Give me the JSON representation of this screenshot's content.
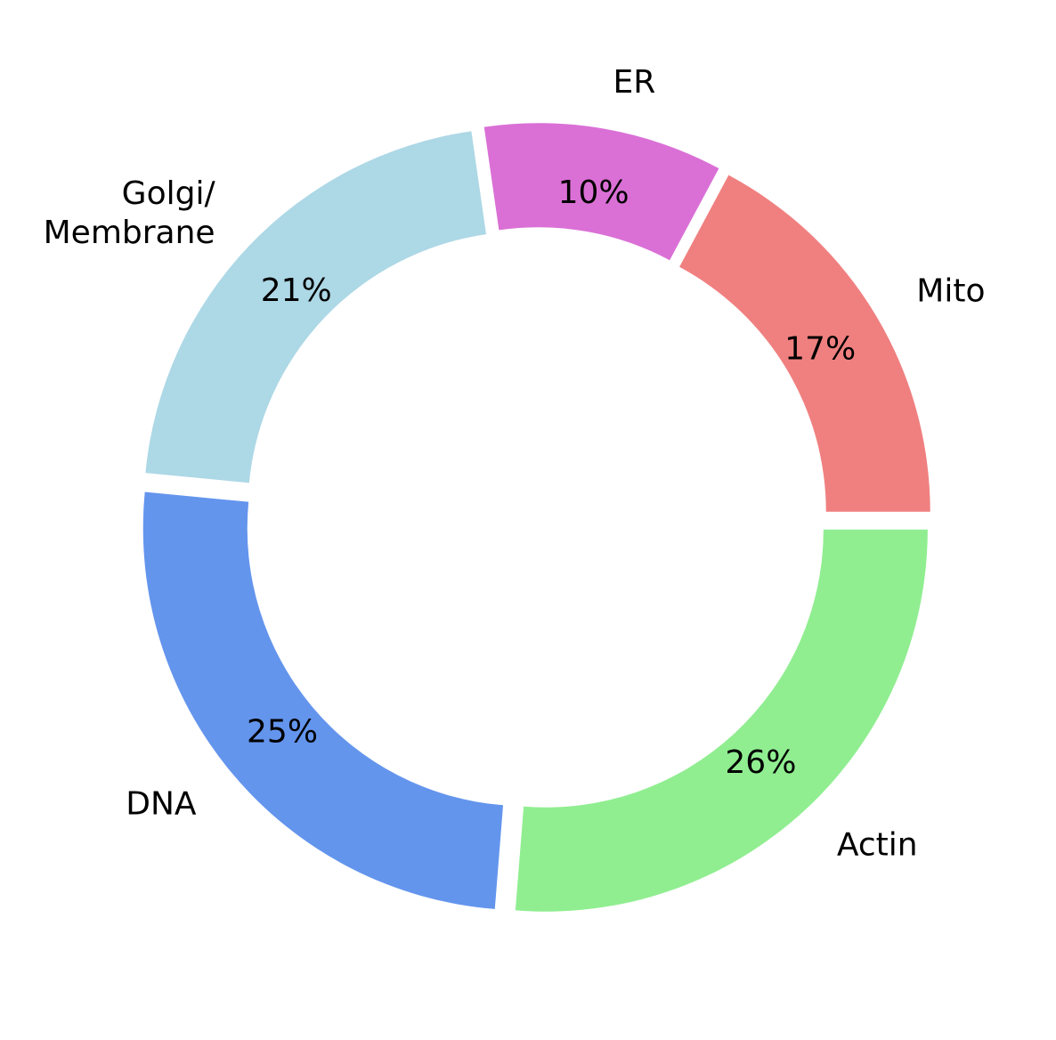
{
  "chart_data": {
    "type": "pie",
    "style": "donut",
    "categories": [
      "Mito",
      "ER",
      "Golgi/\nMembrane",
      "DNA",
      "Actin"
    ],
    "values": [
      17,
      10,
      21,
      25,
      26
    ],
    "value_labels": [
      "17%",
      "10%",
      "21%",
      "25%",
      "26%"
    ],
    "colors": [
      "#f08080",
      "#da70d6",
      "#add8e6",
      "#6495ed",
      "#90ee90"
    ],
    "start_angle_deg": 0,
    "direction": "counterclockwise",
    "exploded": true
  }
}
